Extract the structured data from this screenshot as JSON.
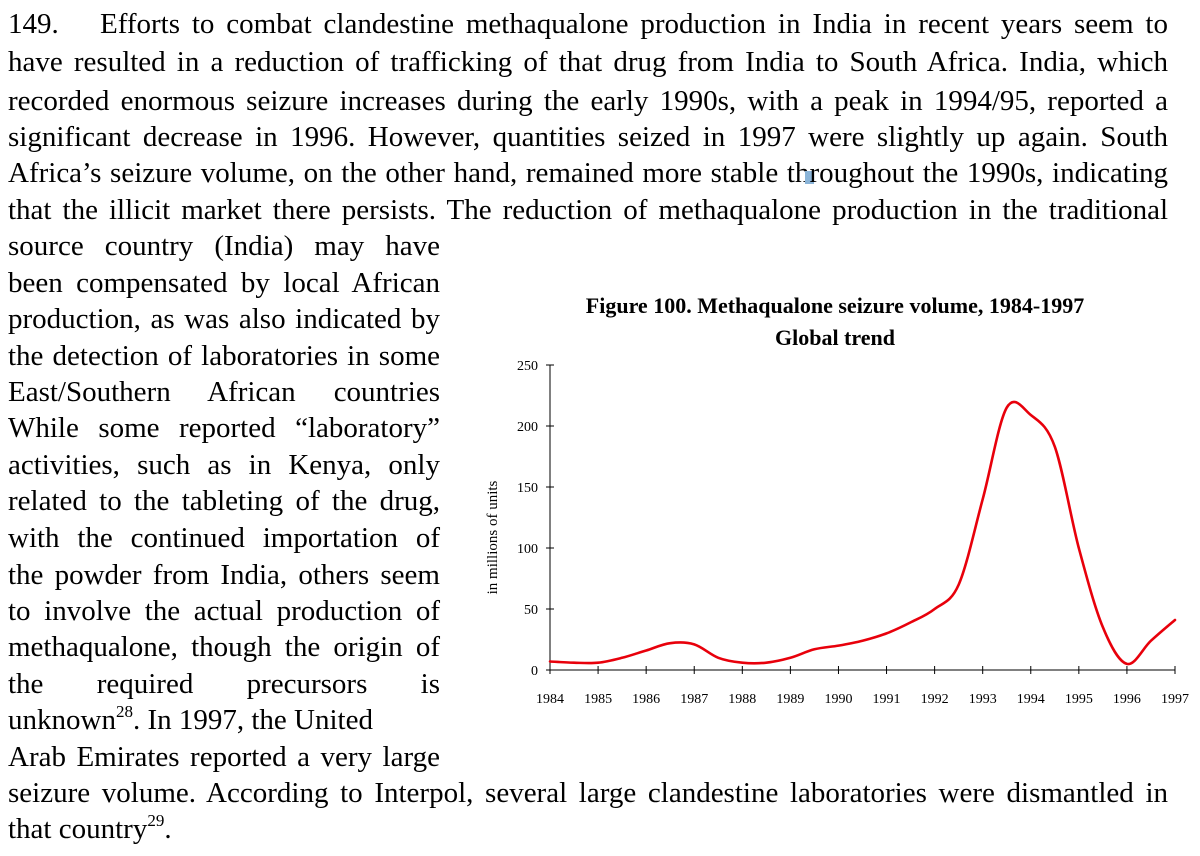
{
  "paragraph": {
    "number": "149.",
    "lines": [
      "Efforts to combat clandestine methaqualone production in India in recent years seem to",
      "have resulted in a reduction of trafficking of that drug from India to South Africa. India, which",
      "recorded enormous seizure increases during the early 1990s, with a peak in 1994/95, reported a",
      "significant decrease in 1996. However, quantities seized in 1997 were slightly up again. South",
      "Africa’s seizure volume, on the other hand, remained more stable throughout the 1990s, indicating",
      "that the illicit market there persists. The reduction of methaqualone production in the traditional",
      "source country (India) may have",
      "been compensated by local African",
      "production, as was also indicated by",
      "the detection of laboratories in some",
      "East/Southern African countries",
      "While some reported “laboratory”",
      "activities, such as in Kenya, only",
      "related to the tableting of the drug,",
      "with the continued importation of",
      "the powder from India, others seem",
      "to involve the actual production of",
      "methaqualone, though the origin of",
      "the required precursors is",
      "unknown",
      ". In 1997, the United",
      "Arab Emirates reported a very large",
      "seizure volume. According to Interpol, several large clandestine laboratories were dismantled in",
      "that country",
      "."
    ],
    "footnotes": [
      "28",
      "29"
    ]
  },
  "figure": {
    "title": "Figure 100. Methaqualone seizure volume, 1984-1997",
    "subtitle": "Global trend"
  },
  "chart_data": {
    "type": "line",
    "title": "Figure 100. Methaqualone seizure volume, 1984-1997",
    "subtitle": "Global trend",
    "xlabel": "",
    "ylabel": "in millions of units",
    "categories": [
      "1984",
      "1985",
      "1986",
      "1987",
      "1988",
      "1989",
      "1990",
      "1991",
      "1992",
      "1993",
      "1994",
      "1995",
      "1996",
      "1997"
    ],
    "ylim": [
      0,
      250
    ],
    "yticks": [
      0,
      50,
      100,
      150,
      200,
      250
    ],
    "grid": false,
    "color": "#e8000b",
    "x": [
      1984,
      1984.5,
      1985,
      1985.5,
      1986,
      1986.5,
      1987,
      1987.5,
      1988,
      1988.5,
      1989,
      1989.5,
      1990,
      1990.5,
      1991,
      1991.5,
      1992,
      1992.5,
      1993,
      1993.5,
      1994,
      1994.5,
      1995,
      1995.5,
      1996,
      1996.5,
      1997
    ],
    "values": [
      7,
      6,
      6,
      10,
      16,
      22,
      21,
      10,
      6,
      6,
      10,
      17,
      20,
      24,
      30,
      39,
      50,
      70,
      140,
      215,
      209,
      183,
      100,
      35,
      5,
      24,
      41
    ]
  }
}
